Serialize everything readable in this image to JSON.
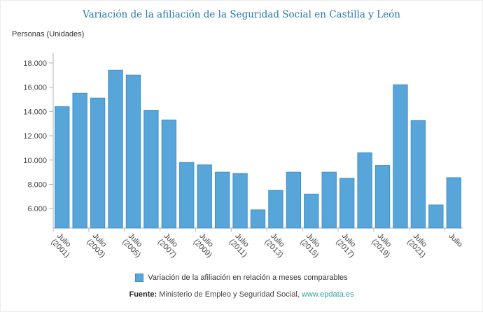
{
  "title": "Variación de la afiliación de la Seguridad Social en Castilla y León",
  "y_axis_title": "Personas (Unidades)",
  "legend": {
    "label": "Variación de la afiliación en relación a meses comparables"
  },
  "source": {
    "prefix": "Fuente:",
    "text": " Ministerio de Empleo y Seguridad Social, ",
    "link": "www.epdata.es"
  },
  "colors": {
    "title": "#2374b5",
    "bar": "#58a5da",
    "bar_border": "#3f90c8",
    "link": "#29a5a0",
    "axis": "#b3b3b3",
    "text": "#404040"
  },
  "chart_data": {
    "type": "bar",
    "title": "Variación de la afiliación de la Seguridad Social en Castilla y León",
    "xlabel": "",
    "ylabel": "Personas (Unidades)",
    "categories": [
      "Julio (2001)",
      "",
      "Julio (2003)",
      "",
      "Julio (2005)",
      "",
      "Julio (2007)",
      "",
      "Julio (2009)",
      "",
      "Julio (2011)",
      "",
      "Julio (2013)",
      "",
      "Julio (2015)",
      "",
      "Julio (2017)",
      "",
      "Julio (2019)",
      "",
      "Julio (2021)",
      "",
      "Julio"
    ],
    "values": [
      14400,
      15500,
      15100,
      17400,
      17000,
      14100,
      13300,
      9800,
      9600,
      9000,
      8900,
      5900,
      7500,
      9000,
      7200,
      9000,
      8500,
      10600,
      9550,
      16200,
      13250,
      6300,
      8550
    ],
    "yticks": [
      6000,
      8000,
      10000,
      12000,
      14000,
      16000,
      18000
    ],
    "ylim": [
      4400,
      18800
    ],
    "grid": false,
    "legend_entries": [
      "Variación de la afiliación en relación a meses comparables"
    ],
    "legend_position": "bottom",
    "bar_color": "#58a5da",
    "bar_border": "#3f90c8"
  }
}
